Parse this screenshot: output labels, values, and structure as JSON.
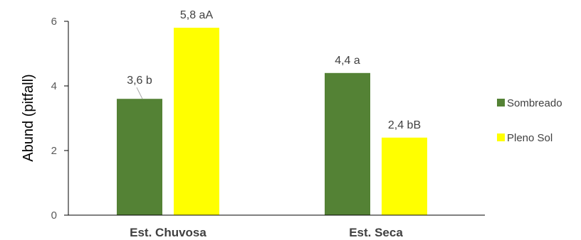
{
  "chart_data": {
    "type": "bar",
    "ylabel": "Abund (pitfall)",
    "xlabel": "",
    "title": "",
    "ylim": [
      0,
      6
    ],
    "yticks": [
      0,
      2,
      4,
      6
    ],
    "grid": false,
    "legend_position": "right",
    "categories": [
      "Est. Chuvosa",
      "Est. Seca"
    ],
    "series": [
      {
        "name": "Sombreado",
        "color": "#548235",
        "values": [
          3.6,
          4.4
        ],
        "labels": [
          "3,6 b",
          "4,4 a"
        ]
      },
      {
        "name": "Pleno Sol",
        "color": "#FFFF00",
        "values": [
          5.8,
          2.4
        ],
        "labels": [
          "5,8 aA",
          "2,4 bB"
        ]
      }
    ]
  }
}
